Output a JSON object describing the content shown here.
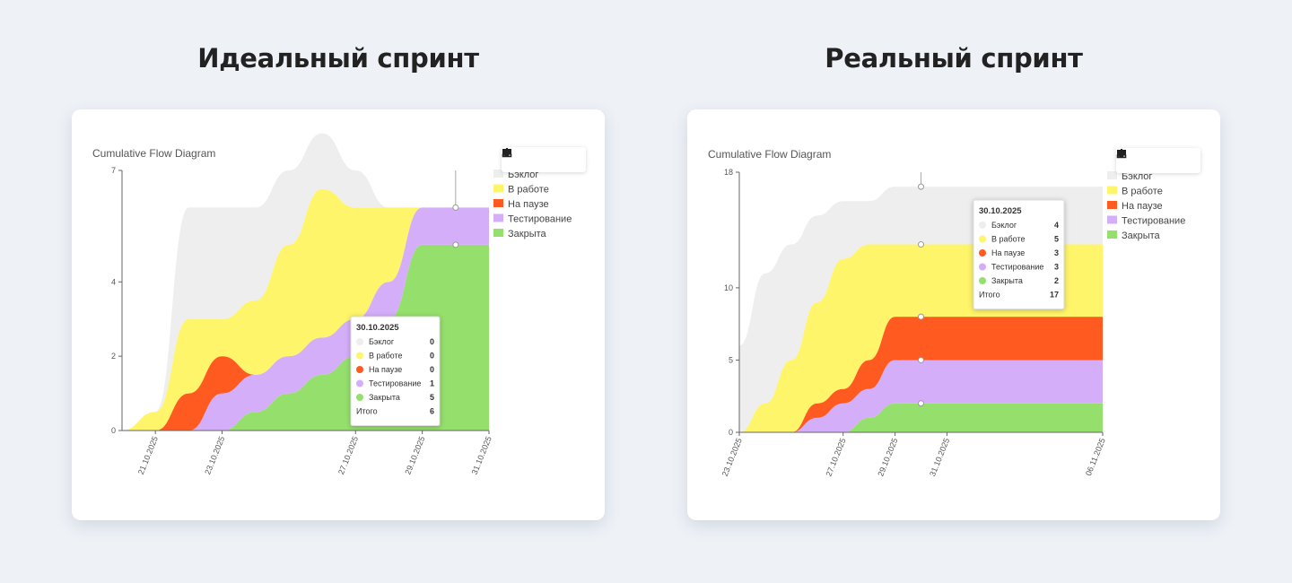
{
  "toolbar_icons": [
    "monitor-icon",
    "pencil-icon",
    "download-icon",
    "trash-icon"
  ],
  "chart_data": [
    {
      "heading": "Идеальный спринт",
      "type": "area",
      "title": "Cumulative Flow Diagram",
      "x": [
        "20.10.2025",
        "21.10.2025",
        "22.10.2025",
        "23.10.2025",
        "24.10.2025",
        "25.10.2025",
        "26.10.2025",
        "27.10.2025",
        "28.10.2025",
        "29.10.2025",
        "30.10.2025",
        "31.10.2025"
      ],
      "x_ticks": [
        "21.10.2025",
        "23.10.2025",
        "27.10.2025",
        "29.10.2025",
        "31.10.2025"
      ],
      "y_ticks": [
        0,
        2,
        4,
        7
      ],
      "ylim": [
        0,
        7
      ],
      "series": [
        {
          "name": "Закрыта",
          "color": "#95e06c",
          "values": [
            0,
            0,
            0,
            0,
            0.5,
            1,
            1.5,
            2,
            3,
            5,
            5,
            5
          ]
        },
        {
          "name": "Тестирование",
          "color": "#d5aefa",
          "values": [
            0,
            0,
            0,
            1,
            1,
            1,
            1,
            1,
            1,
            1,
            1,
            1
          ]
        },
        {
          "name": "На паузе",
          "color": "#ff5a1f",
          "values": [
            0,
            0,
            1,
            1,
            0,
            0,
            0,
            0,
            0,
            0,
            0,
            0
          ]
        },
        {
          "name": "В работе",
          "color": "#fff56a",
          "values": [
            0,
            0.5,
            2,
            1,
            2,
            3,
            4,
            3,
            2,
            0,
            0,
            0
          ]
        },
        {
          "name": "Бэклог",
          "color": "#eeeeee",
          "values": [
            0,
            0,
            3,
            3,
            2.5,
            2,
            1.5,
            1,
            0,
            0,
            0,
            0
          ]
        }
      ],
      "legend_order": [
        "Бэклог",
        "В работе",
        "На паузе",
        "Тестирование",
        "Закрыта"
      ],
      "tooltip": {
        "date": "30.10.2025",
        "rows": [
          {
            "name": "Бэклог",
            "value": "0"
          },
          {
            "name": "В работе",
            "value": "0"
          },
          {
            "name": "На паузе",
            "value": "0"
          },
          {
            "name": "Тестирование",
            "value": "1"
          },
          {
            "name": "Закрыта",
            "value": "5"
          }
        ],
        "total_label": "Итого",
        "total": "6"
      }
    },
    {
      "heading": "Реальный спринт",
      "type": "area",
      "title": "Cumulative Flow Diagram",
      "x": [
        "23.10.2025",
        "24.10.2025",
        "25.10.2025",
        "26.10.2025",
        "27.10.2025",
        "28.10.2025",
        "29.10.2025",
        "30.10.2025",
        "31.10.2025",
        "01.11.2025",
        "02.11.2025",
        "03.11.2025",
        "04.11.2025",
        "05.11.2025",
        "06.11.2025"
      ],
      "x_ticks": [
        "23.10.2025",
        "27.10.2025",
        "29.10.2025",
        "31.10.2025",
        "06.11.2025"
      ],
      "y_ticks": [
        0,
        5,
        10,
        18
      ],
      "ylim": [
        0,
        18
      ],
      "series": [
        {
          "name": "Закрыта",
          "color": "#95e06c",
          "values": [
            0,
            0,
            0,
            0,
            0,
            1,
            2,
            2,
            2,
            2,
            2,
            2,
            2,
            2,
            2
          ]
        },
        {
          "name": "Тестирование",
          "color": "#d5aefa",
          "values": [
            0,
            0,
            0,
            1,
            2,
            2,
            3,
            3,
            3,
            3,
            3,
            3,
            3,
            3,
            3
          ]
        },
        {
          "name": "На паузе",
          "color": "#ff5a1f",
          "values": [
            0,
            0,
            0,
            1,
            1,
            2,
            3,
            3,
            3,
            3,
            3,
            3,
            3,
            3,
            3
          ]
        },
        {
          "name": "В работе",
          "color": "#fff56a",
          "values": [
            0,
            2,
            5,
            7,
            9,
            8,
            5,
            5,
            5,
            5,
            5,
            5,
            5,
            5,
            5
          ]
        },
        {
          "name": "Бэклог",
          "color": "#eeeeee",
          "values": [
            6,
            9,
            8,
            6,
            4,
            3,
            4,
            4,
            4,
            4,
            4,
            4,
            4,
            4,
            4
          ]
        }
      ],
      "legend_order": [
        "Бэклог",
        "В работе",
        "На паузе",
        "Тестирование",
        "Закрыта"
      ],
      "tooltip": {
        "date": "30.10.2025",
        "rows": [
          {
            "name": "Бэклог",
            "value": "4"
          },
          {
            "name": "В работе",
            "value": "5"
          },
          {
            "name": "На паузе",
            "value": "3"
          },
          {
            "name": "Тестирование",
            "value": "3"
          },
          {
            "name": "Закрыта",
            "value": "2"
          }
        ],
        "total_label": "Итого",
        "total": "17"
      }
    }
  ]
}
